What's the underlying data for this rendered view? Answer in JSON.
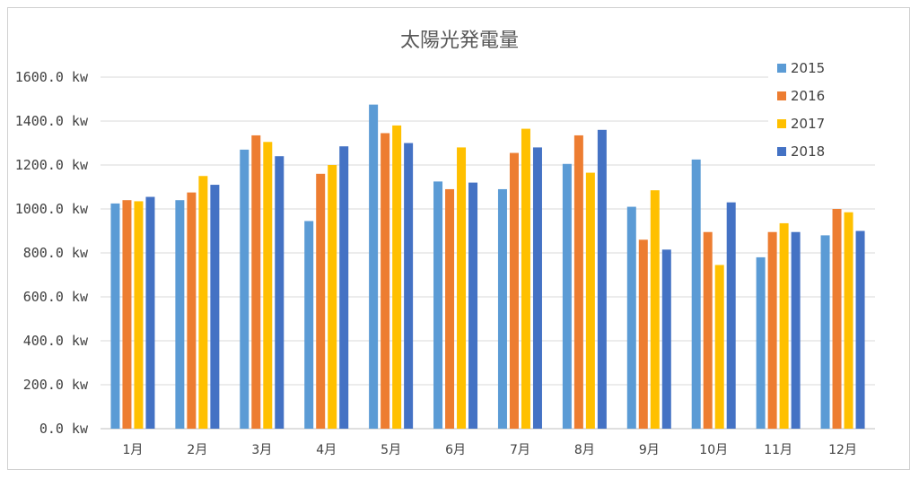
{
  "chart_data": {
    "type": "bar",
    "title": "太陽光発電量",
    "xlabel": "",
    "ylabel": "",
    "ylim": [
      0,
      1600
    ],
    "yticks": [
      0,
      200,
      400,
      600,
      800,
      1000,
      1200,
      1400,
      1600
    ],
    "ytick_labels": [
      "0.0 kw",
      "200.0 kw",
      "400.0 kw",
      "600.0 kw",
      "800.0 kw",
      "1000.0 kw",
      "1200.0 kw",
      "1400.0 kw",
      "1600.0 kw"
    ],
    "grid": true,
    "legend_position": "top-right",
    "categories": [
      "1月",
      "2月",
      "3月",
      "4月",
      "5月",
      "6月",
      "7月",
      "8月",
      "9月",
      "10月",
      "11月",
      "12月"
    ],
    "series": [
      {
        "name": "2015",
        "color": "#5B9BD5",
        "values": [
          1025,
          1040,
          1270,
          945,
          1475,
          1125,
          1090,
          1205,
          1010,
          1225,
          780,
          880
        ]
      },
      {
        "name": "2016",
        "color": "#ED7D31",
        "values": [
          1040,
          1075,
          1335,
          1160,
          1345,
          1090,
          1255,
          1335,
          860,
          895,
          895,
          1000
        ]
      },
      {
        "name": "2017",
        "color": "#FFC000",
        "values": [
          1035,
          1150,
          1305,
          1200,
          1380,
          1280,
          1365,
          1165,
          1085,
          745,
          935,
          985
        ]
      },
      {
        "name": "2018",
        "color": "#4472C4",
        "values": [
          1055,
          1110,
          1240,
          1285,
          1300,
          1120,
          1280,
          1360,
          815,
          1030,
          895,
          900
        ]
      }
    ]
  }
}
